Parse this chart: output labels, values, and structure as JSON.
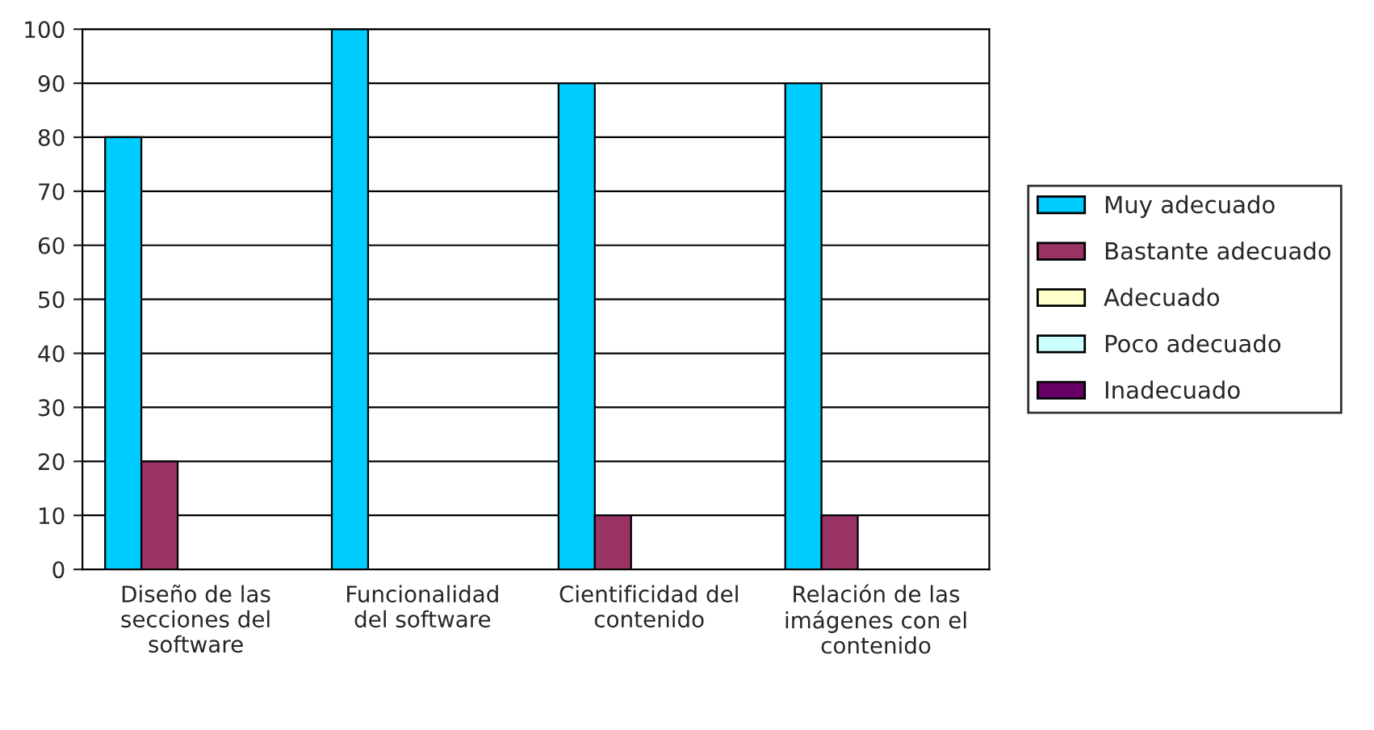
{
  "chart_data": {
    "type": "bar",
    "categories": [
      "Diseño de las\nsecciones del\nsoftware",
      "Funcionalidad\ndel software",
      "Cientificidad del\ncontenido",
      "Relación de las\nimágenes con el\ncontenido"
    ],
    "series": [
      {
        "name": "Muy adecuado",
        "color": "#00ccff",
        "values": [
          80,
          100,
          90,
          90
        ]
      },
      {
        "name": "Bastante adecuado",
        "color": "#993366",
        "values": [
          20,
          0,
          10,
          10
        ]
      },
      {
        "name": "Adecuado",
        "color": "#ffffcc",
        "values": [
          0,
          0,
          0,
          0
        ]
      },
      {
        "name": "Poco adecuado",
        "color": "#ccffff",
        "values": [
          0,
          0,
          0,
          0
        ]
      },
      {
        "name": "Inadecuado",
        "color": "#660066",
        "values": [
          0,
          0,
          0,
          0
        ]
      }
    ],
    "ylim": [
      0,
      100
    ],
    "yticks": [
      0,
      10,
      20,
      30,
      40,
      50,
      60,
      70,
      80,
      90,
      100
    ],
    "grid": "y",
    "legend": "right"
  }
}
